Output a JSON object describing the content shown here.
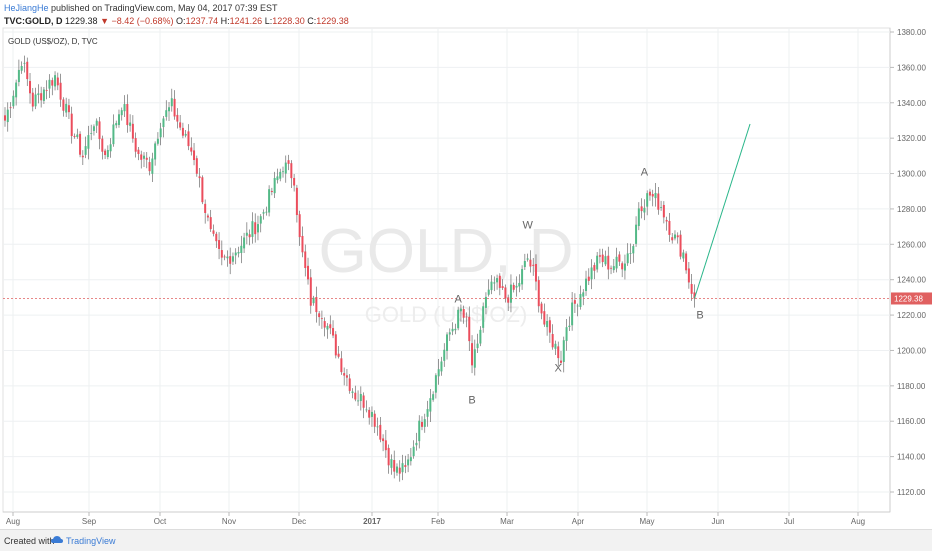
{
  "header": {
    "user": "HeJiangHe",
    "published": "published on TradingView.com, May 04, 2017 07:39 EST",
    "symbol": "TVC:GOLD, D",
    "last": "1229.38",
    "change": "▼ −8.42 (−0.68%)",
    "o_label": "O:",
    "o_val": "1237.74",
    "h_label": "H:",
    "h_val": "1241.26",
    "l_label": "L:",
    "l_val": "1228.30",
    "c_label": "C:",
    "c_val": "1229.38"
  },
  "footer": {
    "created": "Created with",
    "brand": "TradingView"
  },
  "colors": {
    "up": "#53b987",
    "down": "#eb4d5c",
    "wave": "#2ab68a",
    "price_line": "#e06060"
  },
  "chart_data": {
    "type": "candlestick",
    "title": "GOLD (US$/OZ), D, TVC",
    "watermark": "GOLD, D",
    "watermark_sub": "GOLD (US$/OZ)",
    "ylim": [
      1110,
      1385
    ],
    "y_ticks": [
      1120,
      1140,
      1160,
      1180,
      1200,
      1220,
      1240,
      1260,
      1280,
      1300,
      1320,
      1340,
      1360,
      1380
    ],
    "x_ticks": [
      "Aug",
      "Sep",
      "Oct",
      "Nov",
      "Dec",
      "2017",
      "Feb",
      "Mar",
      "Apr",
      "May",
      "Jun",
      "Jul",
      "Aug"
    ],
    "last_price": 1229.38,
    "last_price_label": "1229.38",
    "path": [
      [
        0,
        1330
      ],
      [
        4,
        1352
      ],
      [
        6,
        1365
      ],
      [
        10,
        1340
      ],
      [
        18,
        1355
      ],
      [
        24,
        1325
      ],
      [
        28,
        1310
      ],
      [
        32,
        1330
      ],
      [
        36,
        1310
      ],
      [
        42,
        1340
      ],
      [
        46,
        1320
      ],
      [
        48,
        1310
      ],
      [
        52,
        1305
      ],
      [
        56,
        1330
      ],
      [
        60,
        1338
      ],
      [
        64,
        1322
      ],
      [
        68,
        1310
      ],
      [
        74,
        1265
      ],
      [
        78,
        1250
      ],
      [
        82,
        1255
      ],
      [
        86,
        1262
      ],
      [
        92,
        1275
      ],
      [
        96,
        1290
      ],
      [
        100,
        1305
      ],
      [
        104,
        1298
      ],
      [
        106,
        1262
      ],
      [
        110,
        1228
      ],
      [
        114,
        1222
      ],
      [
        118,
        1205
      ],
      [
        122,
        1188
      ],
      [
        126,
        1175
      ],
      [
        130,
        1170
      ],
      [
        134,
        1158
      ],
      [
        138,
        1140
      ],
      [
        140,
        1132
      ],
      [
        144,
        1132
      ],
      [
        148,
        1152
      ],
      [
        152,
        1170
      ],
      [
        156,
        1190
      ],
      [
        160,
        1210
      ],
      [
        164,
        1222
      ],
      [
        166,
        1215
      ],
      [
        168,
        1192
      ],
      [
        170,
        1200
      ],
      [
        172,
        1225
      ],
      [
        176,
        1238
      ],
      [
        180,
        1230
      ],
      [
        184,
        1235
      ],
      [
        188,
        1252
      ],
      [
        190,
        1244
      ],
      [
        194,
        1215
      ],
      [
        198,
        1202
      ],
      [
        200,
        1196
      ],
      [
        202,
        1215
      ],
      [
        206,
        1230
      ],
      [
        210,
        1242
      ],
      [
        214,
        1252
      ],
      [
        218,
        1248
      ],
      [
        222,
        1250
      ],
      [
        226,
        1260
      ],
      [
        228,
        1282
      ],
      [
        232,
        1288
      ],
      [
        236,
        1282
      ],
      [
        240,
        1266
      ],
      [
        244,
        1255
      ],
      [
        246,
        1240
      ],
      [
        248,
        1229.38
      ]
    ],
    "projection": {
      "from": [
        248,
        1229.38
      ],
      "to": [
        268,
        1328
      ]
    },
    "wave_labels": [
      {
        "text": "A",
        "bar": 163,
        "price": 1227
      },
      {
        "text": "B",
        "bar": 168,
        "price": 1170
      },
      {
        "text": "W",
        "bar": 188,
        "price": 1269
      },
      {
        "text": "X",
        "bar": 199,
        "price": 1188
      },
      {
        "text": "A",
        "bar": 230,
        "price": 1299
      },
      {
        "text": "B",
        "bar": 250,
        "price": 1218
      }
    ]
  }
}
